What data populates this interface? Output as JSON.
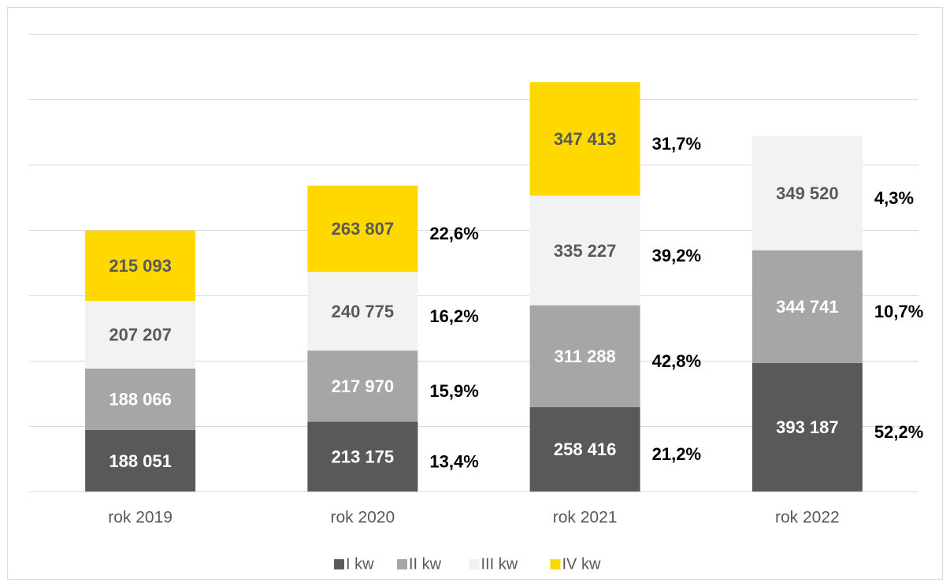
{
  "chart_data": {
    "type": "stacked_bar",
    "categories": [
      "rok 2019",
      "rok 2020",
      "rok 2021",
      "rok 2022"
    ],
    "ylim": [
      0,
      1400000
    ],
    "yticks": [
      0,
      200000,
      400000,
      600000,
      800000,
      1000000,
      1200000,
      1400000
    ],
    "grid": true,
    "legend": "bottom",
    "series": [
      {
        "name": "I kw",
        "color": "#595959",
        "label_color": "#ffffff",
        "values": [
          188051,
          213175,
          258416,
          393187
        ],
        "value_labels": [
          "188 051",
          "213 175",
          "258 416",
          "393 187"
        ],
        "changes": [
          null,
          13.4,
          21.2,
          52.2
        ],
        "change_labels": [
          null,
          "13,4%",
          "21,2%",
          "52,2%"
        ]
      },
      {
        "name": "II kw",
        "color": "#a6a6a6",
        "label_color": "#ffffff",
        "values": [
          188066,
          217970,
          311288,
          344741
        ],
        "value_labels": [
          "188 066",
          "217 970",
          "311 288",
          "344 741"
        ],
        "changes": [
          null,
          15.9,
          42.8,
          10.7
        ],
        "change_labels": [
          null,
          "15,9%",
          "42,8%",
          "10,7%"
        ]
      },
      {
        "name": "III kw",
        "color": "#f2f2f2",
        "label_color": "#595959",
        "values": [
          207207,
          240775,
          335227,
          349520
        ],
        "value_labels": [
          "207 207",
          "240 775",
          "335 227",
          "349 520"
        ],
        "changes": [
          null,
          16.2,
          39.2,
          4.3
        ],
        "change_labels": [
          null,
          "16,2%",
          "39,2%",
          "4,3%"
        ]
      },
      {
        "name": "IV kw",
        "color": "#ffd800",
        "label_color": "#595959",
        "values": [
          215093,
          263807,
          347413,
          null
        ],
        "value_labels": [
          "215 093",
          "263 807",
          "347 413",
          null
        ],
        "changes": [
          null,
          22.6,
          31.7,
          null
        ],
        "change_labels": [
          null,
          "22,6%",
          "31,7%",
          null
        ]
      }
    ]
  }
}
